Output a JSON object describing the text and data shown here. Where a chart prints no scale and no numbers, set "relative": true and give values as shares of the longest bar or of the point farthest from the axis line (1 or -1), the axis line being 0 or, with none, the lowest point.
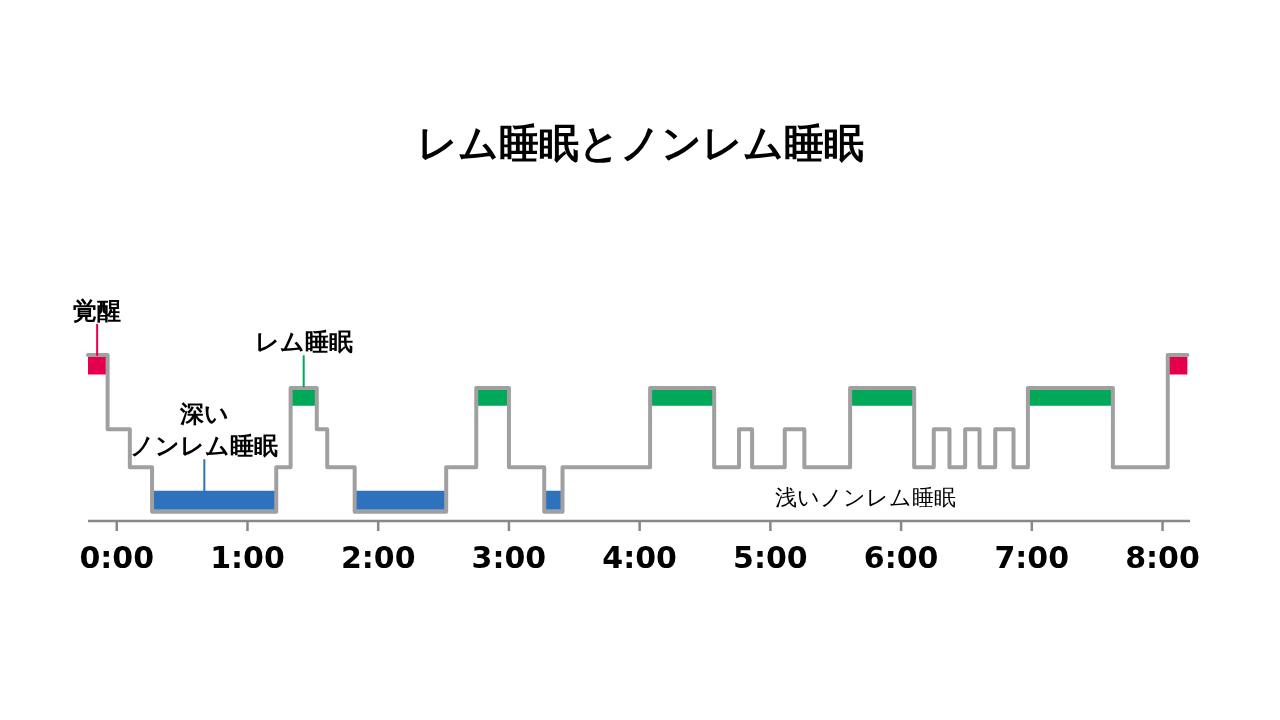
{
  "chart_data": {
    "type": "step",
    "title": "レム睡眠とノンレム睡眠",
    "relative": true,
    "xlim": [
      -0.22,
      8.21
    ],
    "xticks": [
      {
        "value": 0,
        "label": "0:00"
      },
      {
        "value": 1,
        "label": "1:00"
      },
      {
        "value": 2,
        "label": "2:00"
      },
      {
        "value": 3,
        "label": "3:00"
      },
      {
        "value": 4,
        "label": "4:00"
      },
      {
        "value": 5,
        "label": "5:00"
      },
      {
        "value": 6,
        "label": "6:00"
      },
      {
        "value": 7,
        "label": "7:00"
      },
      {
        "value": 8,
        "label": "8:00"
      }
    ],
    "series": [
      {
        "color": "#a0a0a0",
        "x": [
          -0.22,
          -0.07,
          0.1,
          0.27,
          1.22,
          1.33,
          1.53,
          1.61,
          1.82,
          2.52,
          2.75,
          3.0,
          3.27,
          3.41,
          4.08,
          4.57,
          4.76,
          4.86,
          5.11,
          5.26,
          5.61,
          6.1,
          6.25,
          6.37,
          6.49,
          6.6,
          6.72,
          6.86,
          6.97,
          7.62,
          8.04,
          8.19
        ],
        "values": [
          1,
          0.55,
          0.32,
          0.05,
          0.32,
          0.8,
          0.55,
          0.32,
          0.05,
          0.32,
          0.8,
          0.32,
          0.05,
          0.32,
          0.8,
          0.32,
          0.55,
          0.32,
          0.55,
          0.32,
          0.8,
          0.32,
          0.55,
          0.32,
          0.55,
          0.32,
          0.55,
          0.32,
          0.8,
          0.32,
          1,
          1
        ]
      },
      {
        "color": "#e6004c",
        "x": [
          -0.22,
          -0.07,
          null,
          8.04,
          8.19
        ],
        "values": [
          0.94,
          0.94,
          null,
          0.94,
          0.94
        ]
      },
      {
        "color": "#00a85a",
        "x": [
          1.33,
          1.53,
          null,
          2.75,
          3.0,
          null,
          4.08,
          4.57,
          null,
          5.61,
          6.1,
          null,
          6.97,
          7.62
        ],
        "values": [
          0.75,
          0.75,
          null,
          0.75,
          0.75,
          null,
          0.75,
          0.75,
          null,
          0.75,
          0.75,
          null,
          0.75,
          0.75
        ]
      },
      {
        "color": "#2e72bd",
        "x": [
          0.27,
          1.22,
          null,
          1.82,
          2.52,
          null,
          3.27,
          3.41
        ],
        "values": [
          0.12,
          0.12,
          null,
          0.12,
          0.12,
          null,
          0.12,
          0.12
        ]
      }
    ],
    "annotations": [
      {
        "text": "覚醒",
        "x": -0.15,
        "y": 0.94
      },
      {
        "text": "レム睡眠",
        "x": 1.43,
        "y": 0.75
      },
      "深い",
      {
        "text": "ノンレム睡眠",
        "x": 0.67,
        "y": 0.12
      },
      "浅いノンレム睡眠"
    ]
  }
}
